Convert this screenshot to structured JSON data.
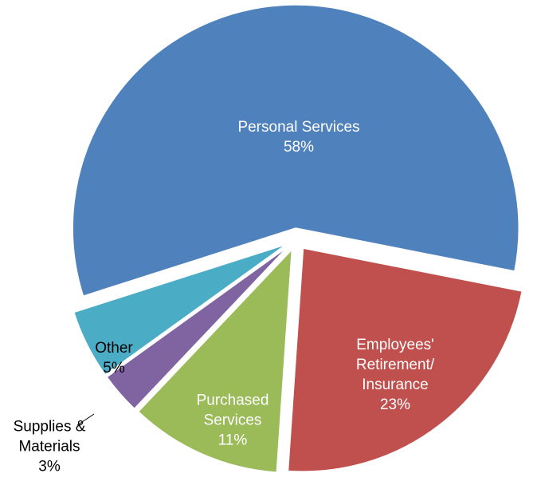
{
  "chart_data": {
    "type": "pie",
    "categories": [
      "Personal Services",
      "Employees' Retirement/ Insurance",
      "Purchased Services",
      "Supplies & Materials",
      "Other"
    ],
    "values": [
      58,
      23,
      11,
      3,
      5
    ],
    "value_labels": [
      "58%",
      "23%",
      "11%",
      "3%",
      "5%"
    ],
    "colors": [
      "#4f81bd",
      "#c0504d",
      "#9bbb59",
      "#8064a2",
      "#4bacc6"
    ]
  }
}
